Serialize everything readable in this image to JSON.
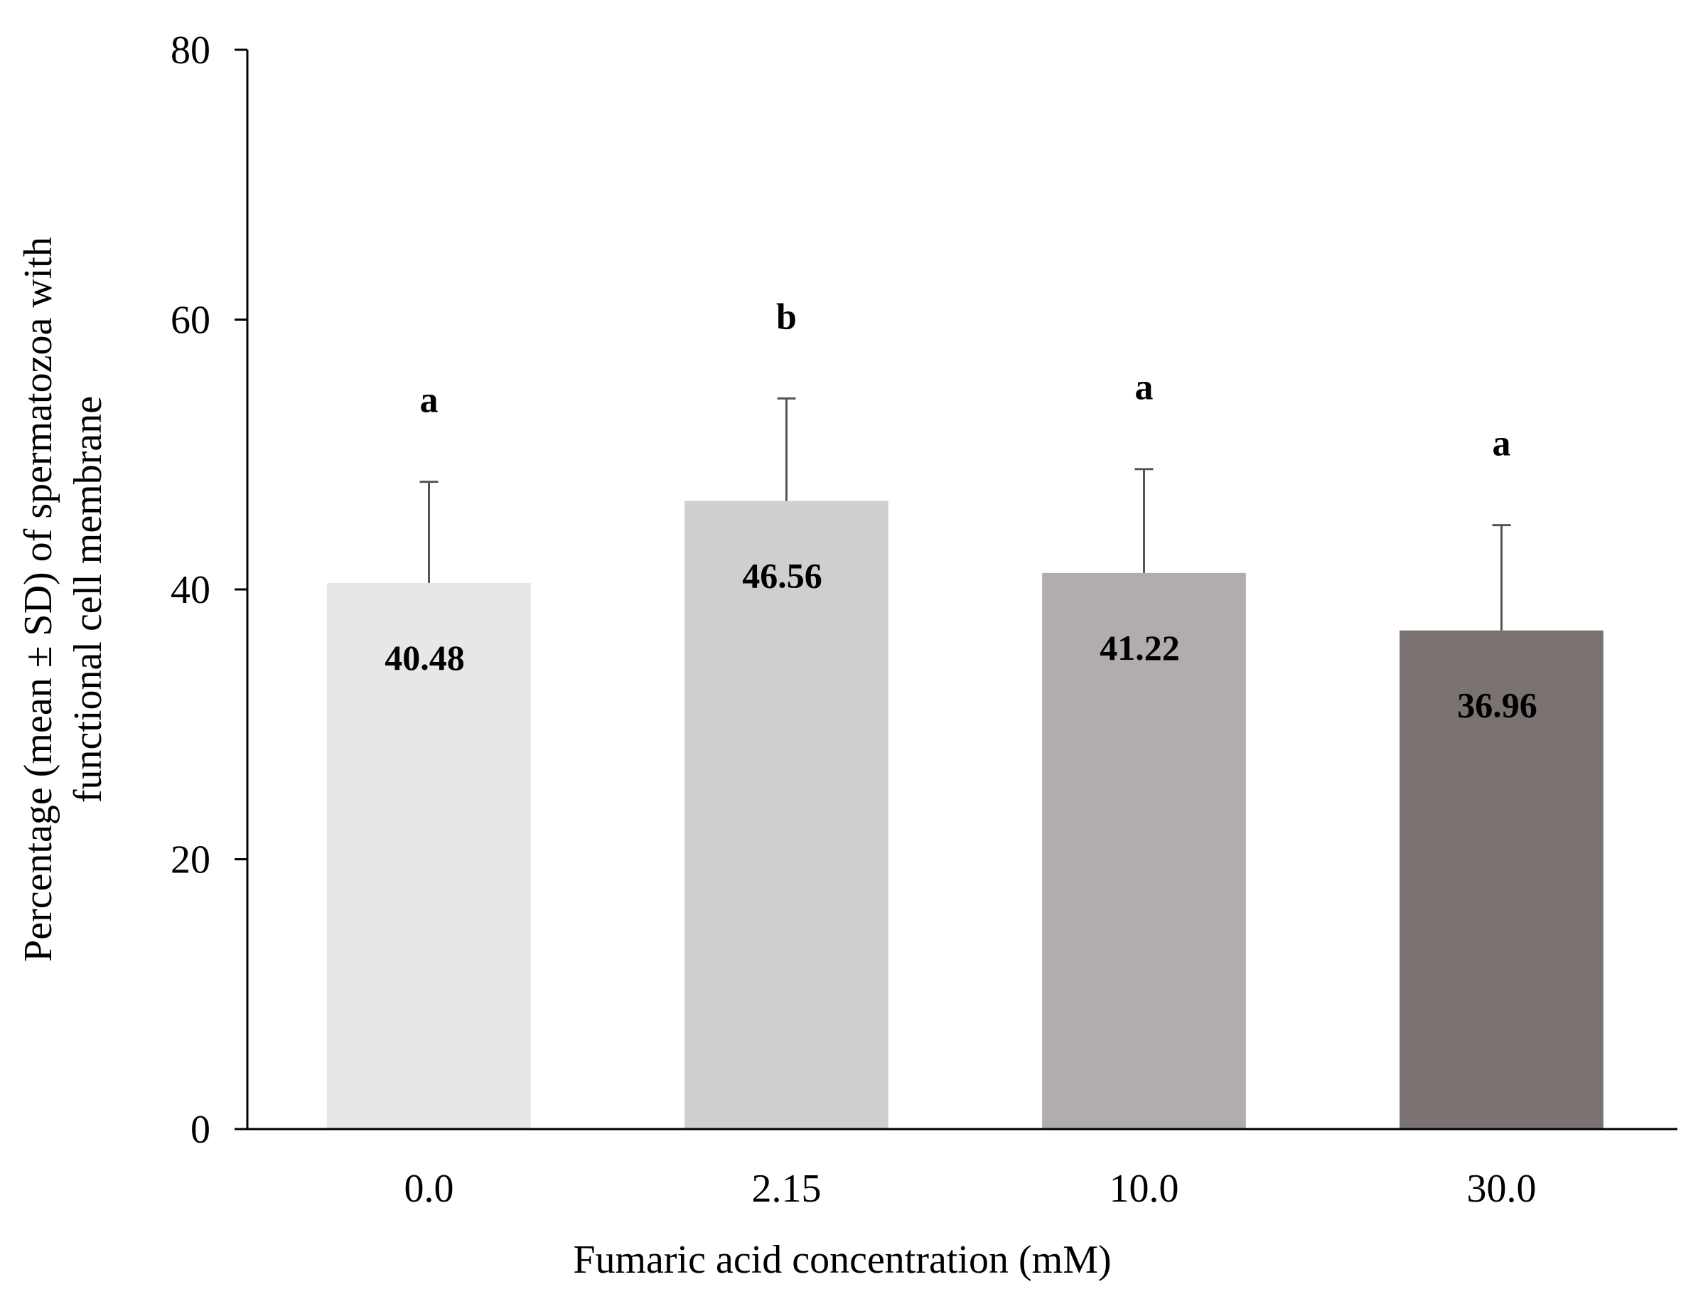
{
  "chart_data": {
    "type": "bar",
    "title": "",
    "xlabel": "Fumaric acid concentration (mM)",
    "ylabel_lines": [
      "Percentage  (mean ± SD) of spermatozoa with",
      "functional cell membrane"
    ],
    "categories": [
      "0.0",
      "2.15",
      "10.0",
      "30.0"
    ],
    "values": [
      40.48,
      46.56,
      41.22,
      36.96
    ],
    "value_labels": [
      "40.48",
      "46.56",
      "41.22",
      "36.96"
    ],
    "error_sd": [
      7.5,
      7.6,
      7.7,
      7.8
    ],
    "significance": [
      "a",
      "b",
      "a",
      "a"
    ],
    "bar_colors": [
      "#e7e7e7",
      "#d0cfce",
      "#b1adac",
      "#7a7372"
    ],
    "ylim": [
      0,
      80
    ],
    "yticks": [
      0,
      20,
      40,
      60,
      80
    ],
    "ytick_labels": [
      "0",
      "20",
      "40",
      "60",
      "80"
    ],
    "grid": false,
    "legend": "none"
  }
}
